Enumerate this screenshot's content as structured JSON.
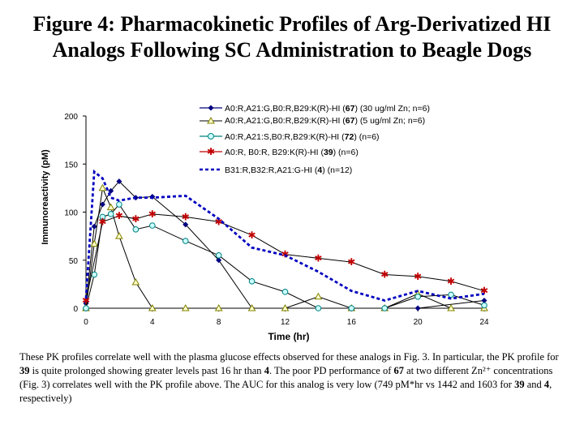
{
  "title": {
    "line1": "Figure 4: Pharmacokinetic Profiles of Arg-Derivatized HI",
    "line2": "Analogs Following SC Administration  to Beagle Dogs"
  },
  "chart_data": {
    "type": "line",
    "xlabel": "Time (hr)",
    "ylabel": "Immunoreactivity (pM)",
    "xlim": [
      0,
      24
    ],
    "ylim": [
      0,
      200
    ],
    "xticks": [
      0,
      4,
      8,
      12,
      16,
      20,
      24
    ],
    "yticks": [
      0,
      50,
      100,
      150,
      200
    ],
    "grid": false,
    "legend_position": "top-right",
    "series": [
      {
        "name": "A0:R,A21:G,B0:R,B29:K(R)-HI (67) (30 ug/ml Zn; n=6)",
        "color": "#000080",
        "marker": "diamond",
        "dash": "solid",
        "x": [
          0,
          0.5,
          1,
          1.5,
          2,
          3,
          4,
          6,
          8,
          10,
          20,
          24
        ],
        "y": [
          5,
          85,
          108,
          122,
          132,
          115,
          116,
          87,
          50,
          0,
          0,
          8
        ]
      },
      {
        "name": "A0:R,A21:G,B0:R,B29:K(R)-HI (67) (5 ug/ml Zn; n=6)",
        "color": "#808000",
        "marker": "triangle",
        "dash": "solid",
        "x": [
          0,
          0.5,
          1,
          1.5,
          2,
          3,
          4,
          6,
          8,
          10,
          12,
          14,
          16,
          18,
          20,
          22,
          24
        ],
        "y": [
          0,
          67,
          125,
          105,
          75,
          27,
          0,
          0,
          0,
          0,
          0,
          12,
          0,
          0,
          15,
          0,
          0
        ]
      },
      {
        "name": "A0:R,A21:S,B0:R,B29:K(R)-HI (72) (n=6)",
        "color": "#008080",
        "marker": "circle",
        "dash": "solid",
        "x": [
          0,
          0.5,
          1,
          1.5,
          2,
          3,
          4,
          6,
          8,
          10,
          12,
          14,
          16,
          18,
          20,
          22,
          24
        ],
        "y": [
          0,
          35,
          95,
          98,
          108,
          82,
          86,
          70,
          55,
          28,
          17,
          0,
          0,
          0,
          12,
          14,
          3
        ]
      },
      {
        "name": "A0:R, B0:R, B29:K(R)-HI (39) (n=6)",
        "color": "#c00000",
        "marker": "star",
        "dash": "solid",
        "x": [
          0,
          1,
          2,
          3,
          4,
          6,
          8,
          10,
          12,
          14,
          16,
          18,
          20,
          22,
          24
        ],
        "y": [
          8,
          90,
          96,
          93,
          98,
          95,
          90,
          76,
          56,
          52,
          48,
          35,
          33,
          28,
          18
        ]
      },
      {
        "name": "B31:R,B32:R,A21:G-HI (4) (n=12)",
        "color": "#0000c0",
        "marker": "none",
        "dash": "dashed",
        "x": [
          0,
          0.5,
          1,
          1.5,
          2,
          3,
          4,
          6,
          8,
          10,
          12,
          14,
          16,
          18,
          20,
          22,
          24
        ],
        "y": [
          10,
          142,
          135,
          115,
          112,
          115,
          115,
          117,
          93,
          63,
          55,
          38,
          18,
          8,
          18,
          10,
          15
        ]
      }
    ]
  },
  "legend": {
    "s1": {
      "prefix": "A0:R,A21:G,B0:R,B29:K(R)-HI (",
      "num": "67",
      "suffix": ") (30 ug/ml Zn; n=6)"
    },
    "s2": {
      "prefix": "A0:R,A21:G,B0:R,B29:K(R)-HI (",
      "num": "67",
      "suffix": ") (5 ug/ml Zn; n=6)"
    },
    "s3": {
      "prefix": "A0:R,A21:S,B0:R,B29:K(R)-HI (",
      "num": "72",
      "suffix": ") (n=6)"
    },
    "s4": {
      "prefix": "A0:R, B0:R, B29:K(R)-HI (",
      "num": "39",
      "suffix": ") (n=6)"
    },
    "s5": {
      "prefix": "B31:R,B32:R,A21:G-HI (",
      "num": "4",
      "suffix": ") (n=12)"
    }
  },
  "caption": {
    "t1": "These PK profiles correlate well with the plasma glucose effects observed for these analogs in Fig. 3. In particular, the PK profile for ",
    "b1": "39",
    "t2": " is quite prolonged showing greater levels past 16 hr than ",
    "b2": "4",
    "t3": ". The poor PD performance of ",
    "b3": "67",
    "t4": " at two different Zn²⁺ concentrations (Fig. 3)  correlates well with the PK profile above. The AUC for this analog is very low (749 pM*hr vs 1442 and 1603 for ",
    "b4": "39",
    "t5": " and ",
    "b5": "4",
    "t6": ", respectively)"
  }
}
